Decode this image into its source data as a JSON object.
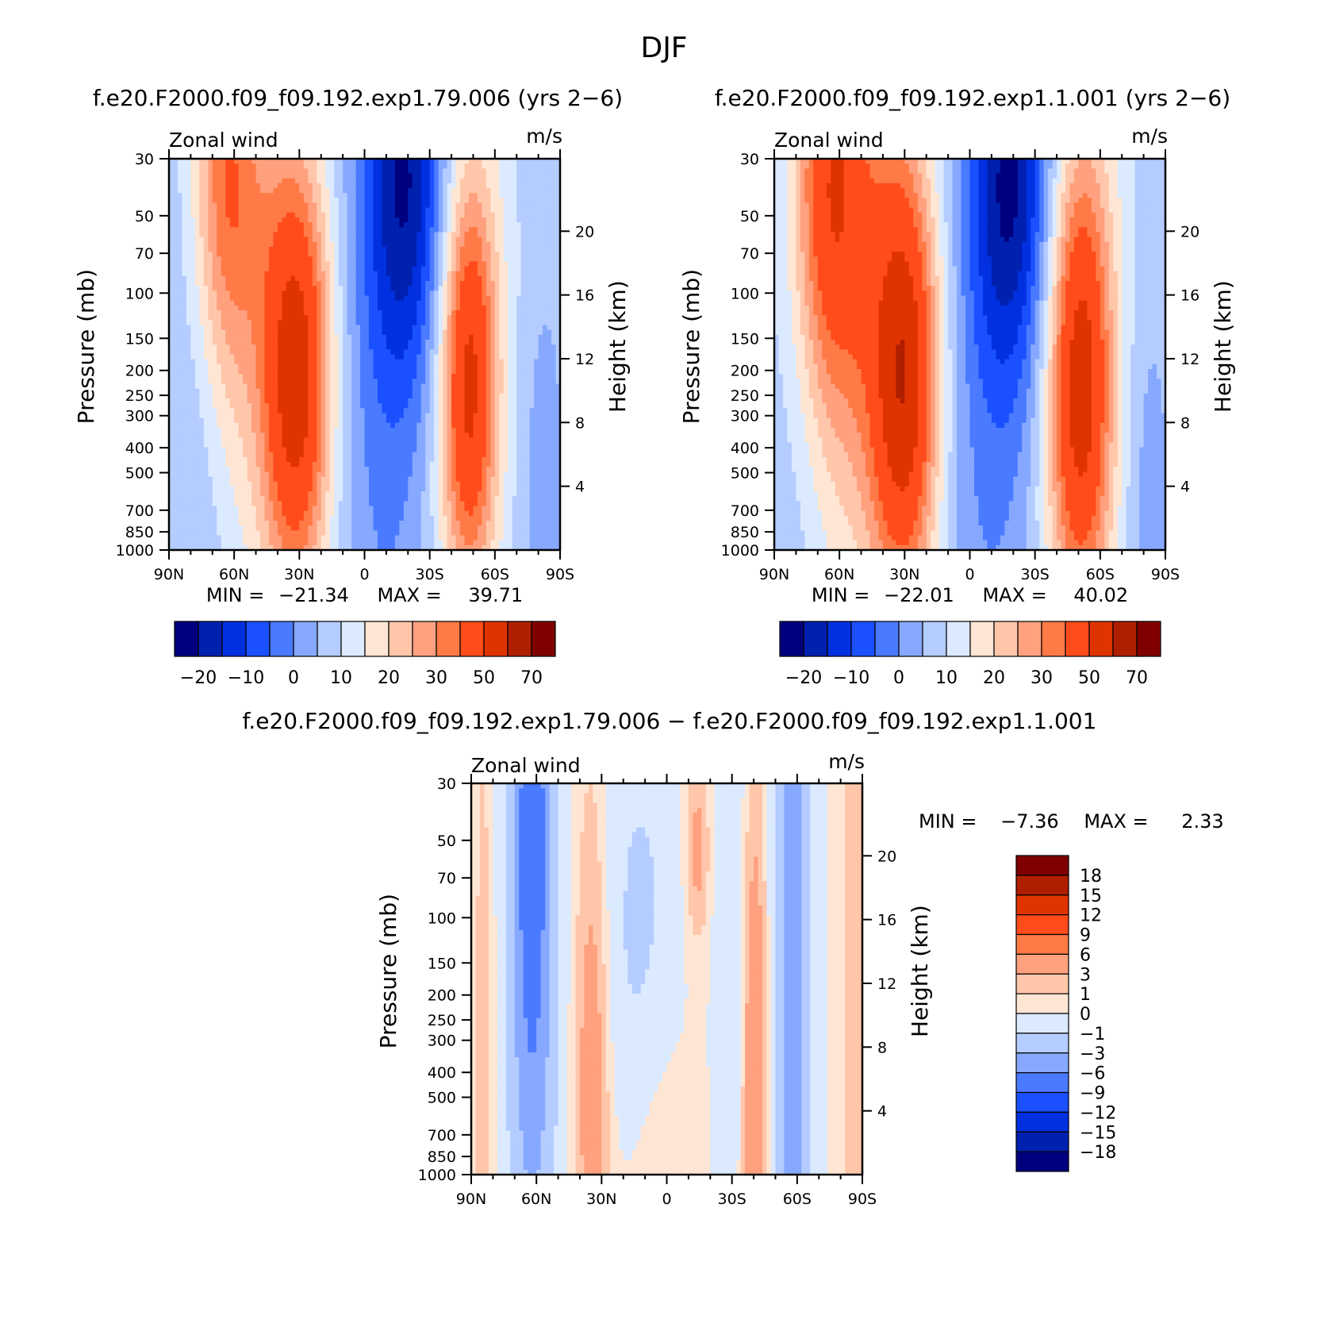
{
  "figure": {
    "title": "DJF",
    "min_label": "MIN =",
    "max_label": "MAX ="
  },
  "palettes": {
    "full": [
      "#00007f",
      "#0020b0",
      "#0030e0",
      "#1a50ff",
      "#4a7aff",
      "#86a8ff",
      "#b4ccff",
      "#dbeaff",
      "#ffe6d4",
      "#ffc6aa",
      "#ffa07e",
      "#ff7a46",
      "#ff4c1a",
      "#e03400",
      "#b01e00",
      "#800000"
    ],
    "diff": [
      "#00007f",
      "#0020b0",
      "#0030e0",
      "#1a50ff",
      "#4a7aff",
      "#86a8ff",
      "#b4ccff",
      "#dbeaff",
      "#ffe6d4",
      "#ffc6aa",
      "#ffa07e",
      "#ff7a46",
      "#ff4c1a",
      "#e03400",
      "#b01e00",
      "#800000"
    ]
  },
  "chart_data": [
    {
      "type": "heatmap",
      "id": "panel1",
      "title": "f.e20.F2000.f09_f09.192.exp1.79.006 (yrs 2−6)",
      "left_string": "Zonal wind",
      "right_string": "m/s",
      "xlabel": "",
      "ylabel": "Pressure (mb)",
      "y2label": "Height (km)",
      "x_ticks": [
        "90N",
        "60N",
        "30N",
        "0",
        "30S",
        "60S",
        "90S"
      ],
      "y_ticks": [
        30,
        50,
        70,
        100,
        150,
        200,
        250,
        300,
        400,
        500,
        700,
        850,
        1000
      ],
      "y2_ticks": [
        20,
        16,
        12,
        8,
        4
      ],
      "ylim": [
        1000,
        30
      ],
      "xlim": [
        90,
        -90
      ],
      "y_scale": "log",
      "min": "−21.34",
      "max": "39.71",
      "levels": [
        -25,
        -20,
        -15,
        -10,
        -5,
        0,
        5,
        10,
        15,
        20,
        25,
        30,
        40,
        50,
        60,
        70
      ],
      "colorbar_labels": [
        "−20",
        "−10",
        "0",
        "10",
        "20",
        "30",
        "50",
        "70"
      ],
      "features": [
        {
          "lat": 64,
          "p": 35,
          "amp": 22,
          "slat": 11,
          "slogp": 0.55
        },
        {
          "lat": 31,
          "p": 220,
          "amp": 39,
          "slat": 11,
          "slogp": 0.58
        },
        {
          "lat": 48,
          "p": 90,
          "amp": 10,
          "slat": 18,
          "slogp": 0.9
        },
        {
          "lat": -20,
          "p": 35,
          "amp": -26,
          "slat": 14,
          "slogp": 0.6
        },
        {
          "lat": -10,
          "p": 400,
          "amp": -8,
          "slat": 18,
          "slogp": 1.2
        },
        {
          "lat": -48,
          "p": 230,
          "amp": 34,
          "slat": 9,
          "slogp": 0.55
        },
        {
          "lat": -45,
          "p": 110,
          "amp": 8,
          "slat": 16,
          "slogp": 1.0
        },
        {
          "lat": 78,
          "p": 300,
          "amp": -4,
          "slat": 10,
          "slogp": 1.5
        },
        {
          "lat": -82,
          "p": 700,
          "amp": -6,
          "slat": 8,
          "slogp": 0.7
        }
      ],
      "base": 3
    },
    {
      "type": "heatmap",
      "id": "panel2",
      "title": "f.e20.F2000.f09_f09.192.exp1.1.001 (yrs 2−6)",
      "left_string": "Zonal wind",
      "right_string": "m/s",
      "xlabel": "",
      "ylabel": "Pressure (mb)",
      "y2label": "Height (km)",
      "x_ticks": [
        "90N",
        "60N",
        "30N",
        "0",
        "30S",
        "60S",
        "90S"
      ],
      "y_ticks": [
        30,
        50,
        70,
        100,
        150,
        200,
        250,
        300,
        400,
        500,
        700,
        850,
        1000
      ],
      "y2_ticks": [
        20,
        16,
        12,
        8,
        4
      ],
      "ylim": [
        1000,
        30
      ],
      "xlim": [
        90,
        -90
      ],
      "y_scale": "log",
      "min": "−22.01",
      "max": "40.02",
      "levels": [
        -25,
        -20,
        -15,
        -10,
        -5,
        0,
        5,
        10,
        15,
        20,
        25,
        30,
        40,
        50,
        60,
        70
      ],
      "colorbar_labels": [
        "−20",
        "−10",
        "0",
        "10",
        "20",
        "30",
        "50",
        "70"
      ],
      "features": [
        {
          "lat": 64,
          "p": 36,
          "amp": 28,
          "slat": 12,
          "slogp": 0.6
        },
        {
          "lat": 30,
          "p": 220,
          "amp": 40,
          "slat": 11,
          "slogp": 0.6
        },
        {
          "lat": 50,
          "p": 90,
          "amp": 14,
          "slat": 20,
          "slogp": 1.0
        },
        {
          "lat": -20,
          "p": 35,
          "amp": -27,
          "slat": 14,
          "slogp": 0.6
        },
        {
          "lat": -10,
          "p": 400,
          "amp": -8,
          "slat": 18,
          "slogp": 1.2
        },
        {
          "lat": -51,
          "p": 240,
          "amp": 35,
          "slat": 10,
          "slogp": 0.6
        },
        {
          "lat": -48,
          "p": 110,
          "amp": 10,
          "slat": 17,
          "slogp": 1.0
        },
        {
          "lat": 80,
          "p": 300,
          "amp": -3,
          "slat": 10,
          "slogp": 1.5
        },
        {
          "lat": -82,
          "p": 700,
          "amp": -6,
          "slat": 8,
          "slogp": 0.7
        }
      ],
      "base": 3
    },
    {
      "type": "heatmap",
      "id": "panel3",
      "title": "f.e20.F2000.f09_f09.192.exp1.79.006 − f.e20.F2000.f09_f09.192.exp1.1.001",
      "left_string": "Zonal wind",
      "right_string": "m/s",
      "xlabel": "",
      "ylabel": "Pressure (mb)",
      "y2label": "Height (km)",
      "x_ticks": [
        "90N",
        "60N",
        "30N",
        "0",
        "30S",
        "60S",
        "90S"
      ],
      "y_ticks": [
        30,
        50,
        70,
        100,
        150,
        200,
        250,
        300,
        400,
        500,
        700,
        850,
        1000
      ],
      "y2_ticks": [
        20,
        16,
        12,
        8,
        4
      ],
      "ylim": [
        1000,
        30
      ],
      "xlim": [
        90,
        -90
      ],
      "y_scale": "log",
      "min": "−7.36",
      "max": "2.33",
      "levels": [
        -21,
        -18,
        -15,
        -12,
        -9,
        -6,
        -3,
        -1,
        0,
        1,
        3,
        6,
        9,
        12,
        15,
        18,
        21
      ],
      "colorbar_labels": [
        "18",
        "15",
        "12",
        "9",
        "6",
        "3",
        "1",
        "0",
        "−1",
        "−3",
        "−6",
        "−9",
        "−12",
        "−15",
        "−18"
      ],
      "features": [
        {
          "lat": 62,
          "p": 40,
          "amp": -8,
          "slat": 7,
          "slogp": 0.9
        },
        {
          "lat": 62,
          "p": 300,
          "amp": -3.5,
          "slat": 8,
          "slogp": 1.2
        },
        {
          "lat": 34,
          "p": 400,
          "amp": 3,
          "slat": 6,
          "slogp": 0.8
        },
        {
          "lat": -40,
          "p": 450,
          "amp": 3.5,
          "slat": 5,
          "slogp": 0.9
        },
        {
          "lat": -58,
          "p": 200,
          "amp": -6.5,
          "slat": 6,
          "slogp": 2.0
        },
        {
          "lat": 12,
          "p": 120,
          "amp": -3,
          "slat": 12,
          "slogp": 0.6
        },
        {
          "lat": -30,
          "p": 150,
          "amp": -2.5,
          "slat": 5,
          "slogp": 0.9
        },
        {
          "lat": -14,
          "p": 55,
          "amp": 2.5,
          "slat": 4,
          "slogp": 0.25
        },
        {
          "lat": 5,
          "p": 900,
          "amp": 1.5,
          "slat": 10,
          "slogp": 0.6
        },
        {
          "lat": -86,
          "p": 200,
          "amp": 1.5,
          "slat": 4,
          "slogp": 1.2
        },
        {
          "lat": 84,
          "p": 300,
          "amp": 1.2,
          "slat": 4,
          "slogp": 1.4
        }
      ],
      "base": -0.8
    }
  ]
}
